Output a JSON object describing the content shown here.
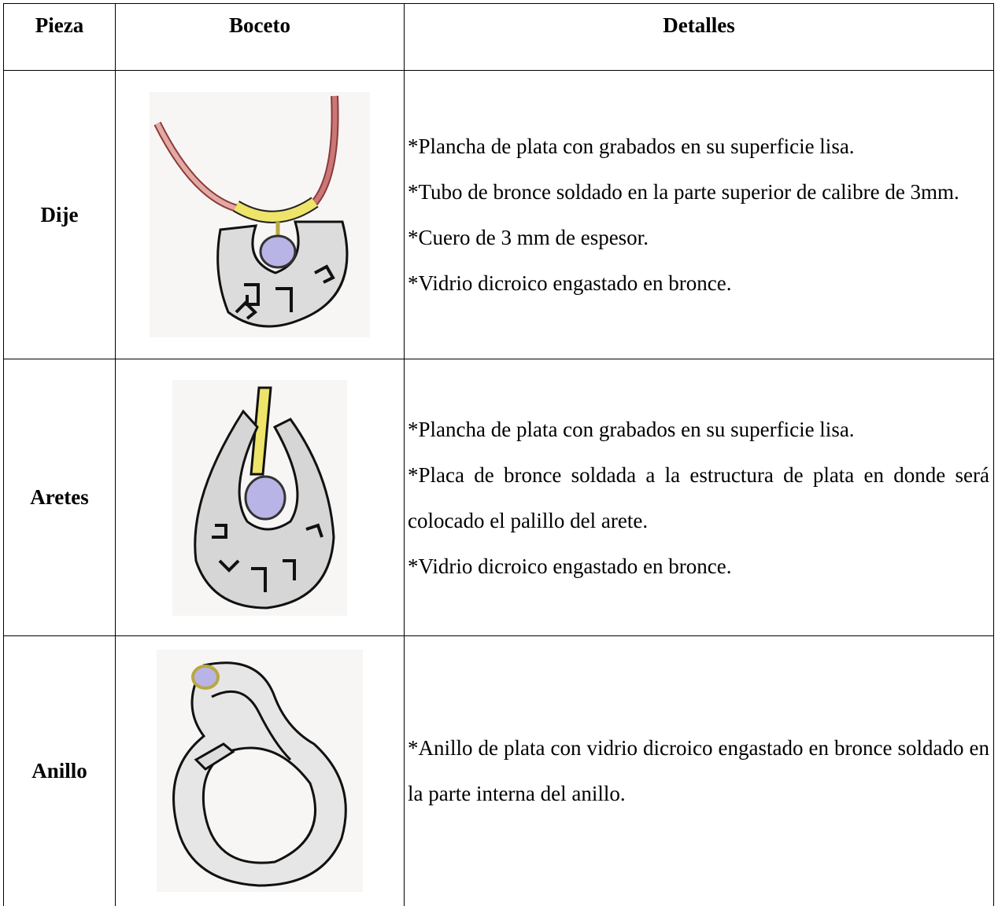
{
  "table": {
    "header": [
      "Pieza",
      "Boceto",
      "Detalles"
    ],
    "rows": [
      {
        "pieza": "Dije",
        "detalles": [
          "*Plancha de plata con grabados en su superficie lisa.",
          "*Tubo de bronce soldado en la parte superior de calibre de 3mm.",
          "*Cuero de 3 mm de espesor.",
          "*Vidrio dicroico engastado en bronce."
        ]
      },
      {
        "pieza": "Aretes",
        "detalles": [
          "*Plancha de plata con grabados en su superficie lisa.",
          "*Placa de bronce soldada a la estructura de plata en donde será colocado el palillo del arete.",
          "*Vidrio dicroico engastado en bronce."
        ]
      },
      {
        "pieza": "Anillo",
        "detalles": [
          "*Anillo de plata con vidrio dicroico engastado en bronce soldado en la parte interna del anillo."
        ]
      }
    ]
  }
}
